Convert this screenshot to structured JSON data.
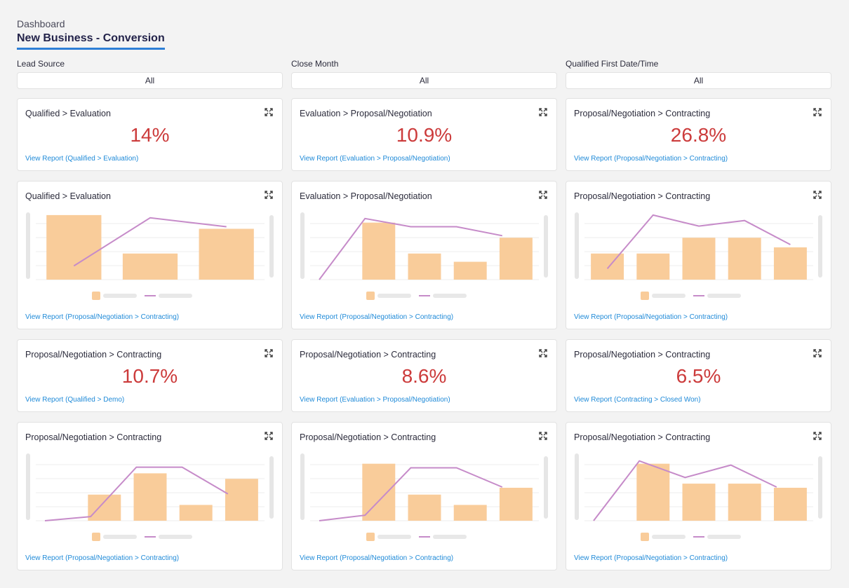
{
  "header": {
    "breadcrumb": "Dashboard",
    "title": "New Business - Conversion"
  },
  "filters": [
    {
      "label": "Lead Source",
      "value": "All"
    },
    {
      "label": "Close Month",
      "value": "All"
    },
    {
      "label": "Qualified First Date/Time",
      "value": "All"
    }
  ],
  "colors": {
    "metric": "#cc3b3b",
    "bar": "#f9cc9a",
    "line": "#c68bc9",
    "link": "#1f8ad8",
    "accent": "#2e7fd6"
  },
  "rows": [
    {
      "kind": "metric",
      "cards": [
        {
          "title": "Qualified > Evaluation",
          "value": "14%",
          "link": "View Report (Qualified > Evaluation)"
        },
        {
          "title": "Evaluation > Proposal/Negotiation",
          "value": "10.9%",
          "link": "View Report (Evaluation > Proposal/Negotiation)"
        },
        {
          "title": "Proposal/Negotiation > Contracting",
          "value": "26.8%",
          "link": "View Report (Proposal/Negotiation > Contracting)"
        }
      ]
    },
    {
      "kind": "chart",
      "cards": [
        {
          "title": "Qualified > Evaluation",
          "link": "View Report (Proposal/Negotiation > Contracting)"
        },
        {
          "title": "Evaluation > Proposal/Negotiation",
          "link": "View Report (Proposal/Negotiation > Contracting)"
        },
        {
          "title": "Proposal/Negotiation > Contracting",
          "link": "View Report (Proposal/Negotiation > Contracting)"
        }
      ]
    },
    {
      "kind": "metric",
      "cards": [
        {
          "title": "Proposal/Negotiation > Contracting",
          "value": "10.7%",
          "link": "View Report (Qualified > Demo)"
        },
        {
          "title": "Proposal/Negotiation > Contracting",
          "value": "8.6%",
          "link": "View Report (Evaluation > Proposal/Negotiation)"
        },
        {
          "title": "Proposal/Negotiation > Contracting",
          "value": "6.5%",
          "link": "View Report (Contracting > Closed Won)"
        }
      ]
    },
    {
      "kind": "chart",
      "cards": [
        {
          "title": "Proposal/Negotiation > Contracting",
          "link": "View Report (Proposal/Negotiation > Contracting)"
        },
        {
          "title": "Proposal/Negotiation > Contracting",
          "link": "View Report (Proposal/Negotiation > Contracting)"
        },
        {
          "title": "Proposal/Negotiation > Contracting",
          "link": "View Report (Proposal/Negotiation > Contracting)"
        }
      ]
    }
  ],
  "chart_data": [
    {
      "type": "bar",
      "title": "Qualified > Evaluation",
      "ylim": [
        0,
        100
      ],
      "bars": [
        94,
        38,
        74
      ],
      "line": [
        20,
        90,
        77
      ]
    },
    {
      "type": "bar",
      "title": "Evaluation > Proposal/Negotiation",
      "ylim": [
        0,
        100
      ],
      "bars": [
        83,
        38,
        26,
        61
      ],
      "line": [
        0,
        89,
        77,
        77,
        64
      ]
    },
    {
      "type": "bar",
      "title": "Proposal/Negotiation > Contracting",
      "ylim": [
        0,
        100
      ],
      "bars": [
        38,
        38,
        61,
        61,
        47
      ],
      "line": [
        16,
        94,
        78,
        86,
        51
      ]
    },
    {
      "type": "bar",
      "title": "Proposal/Negotiation > Contracting",
      "ylim": [
        0,
        100
      ],
      "bars": [
        38,
        69,
        23,
        61
      ],
      "line": [
        0,
        6,
        78,
        78,
        39
      ]
    },
    {
      "type": "bar",
      "title": "Proposal/Negotiation > Contracting",
      "ylim": [
        0,
        100
      ],
      "bars": [
        83,
        38,
        23,
        48
      ],
      "line": [
        0,
        8,
        77,
        77,
        49
      ]
    },
    {
      "type": "bar",
      "title": "Proposal/Negotiation > Contracting",
      "ylim": [
        0,
        100
      ],
      "bars": [
        83,
        54,
        54,
        48
      ],
      "line": [
        0,
        87,
        63,
        81,
        49
      ]
    }
  ]
}
